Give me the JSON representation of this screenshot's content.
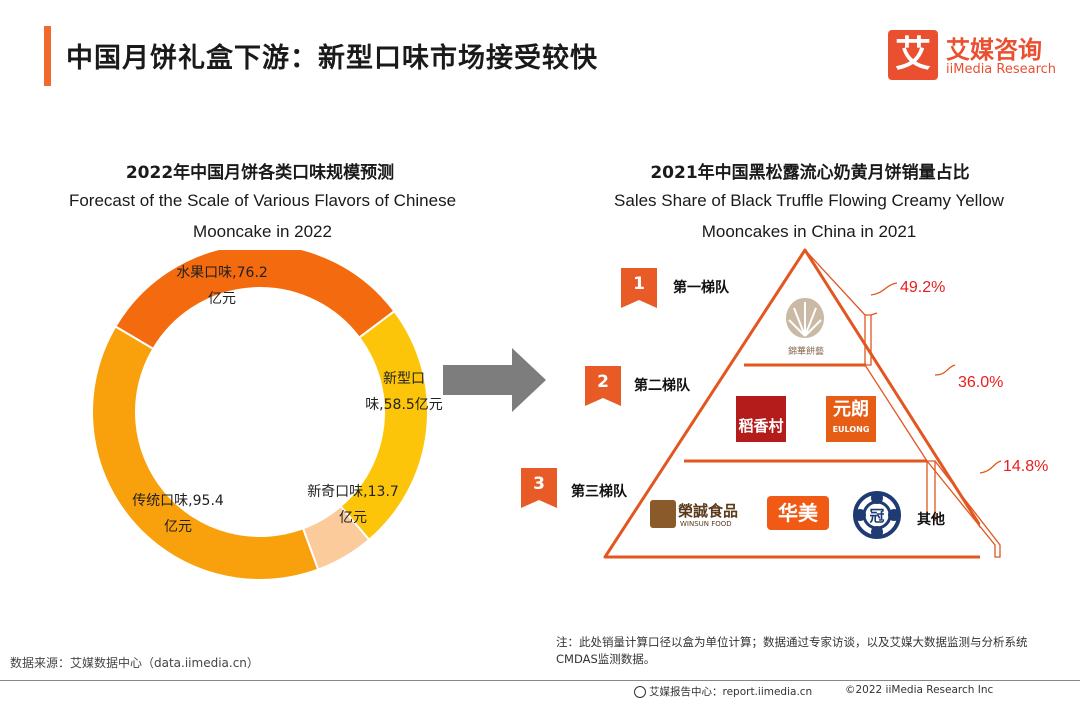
{
  "header": {
    "title": "中国月饼礼盒下游：新型口味市场接受较快",
    "logo_char": "艾",
    "logo_cn": "艾媒咨询",
    "logo_en": "iiMedia Research"
  },
  "colors": {
    "accent": "#f06a2b",
    "red": "#e81d1d"
  },
  "left_chart": {
    "title_cn": "2022年中国月饼各类口味规模预测",
    "title_en_1": "Forecast of the Scale of Various Flavors of Chinese",
    "title_en_2": "Mooncake in 2022",
    "labels": {
      "fruit_1": "水果口味,76.2",
      "fruit_2": "亿元",
      "new_1": "新型口",
      "new_2": "味,58.5亿元",
      "novel_1": "新奇口味,13.7",
      "novel_2": "亿元",
      "trad_1": "传统口味,95.4",
      "trad_2": "亿元"
    }
  },
  "chart_data": [
    {
      "type": "pie",
      "title": "2022年中国月饼各类口味规模预测",
      "unit": "亿元",
      "categories": [
        "水果口味",
        "新型口味",
        "新奇口味",
        "传统口味"
      ],
      "values": [
        76.2,
        58.5,
        13.7,
        95.4
      ],
      "colors": [
        "#f46a0e",
        "#fdc50a",
        "#fbcb9c",
        "#f9a10d"
      ]
    },
    {
      "type": "table",
      "title": "2021年中国黑松露流心奶黄月饼销量占比",
      "categories": [
        "第一梯队",
        "第二梯队",
        "第三梯队"
      ],
      "values": [
        49.2,
        36.0,
        14.8
      ],
      "unit": "%"
    }
  ],
  "right_chart": {
    "title_cn": "2021年中国黑松露流心奶黄月饼销量占比",
    "title_en_1": "Sales Share of Black Truffle Flowing  Creamy Yellow",
    "title_en_2": "Mooncakes in China in 2021",
    "tiers": [
      {
        "num": "1",
        "name": "第一梯队",
        "pct": "49.2%"
      },
      {
        "num": "2",
        "name": "第二梯队",
        "pct": "36.0%"
      },
      {
        "num": "3",
        "name": "第三梯队",
        "pct": "14.8%"
      }
    ],
    "brands": {
      "tier1": "錦華餅藝",
      "daoxiang": "稻香村",
      "yuanlang_cn": "元朗",
      "yuanlang_en": "EULONG",
      "rongcheng": "榮誠食品",
      "rongcheng_en": "WINSUN FOOD",
      "huamei": "华美",
      "guan": "冠",
      "other": "其他"
    }
  },
  "footer": {
    "source": "数据来源：艾媒数据中心（data.iimedia.cn）",
    "note": "注：此处销量计算口径以盒为单位计算；数据通过专家访谈，以及艾媒大数据监测与分析系统CMDAS监测数据。",
    "report": "艾媒报告中心：report.iimedia.cn",
    "copyright": "©2022 iiMedia Research Inc"
  }
}
